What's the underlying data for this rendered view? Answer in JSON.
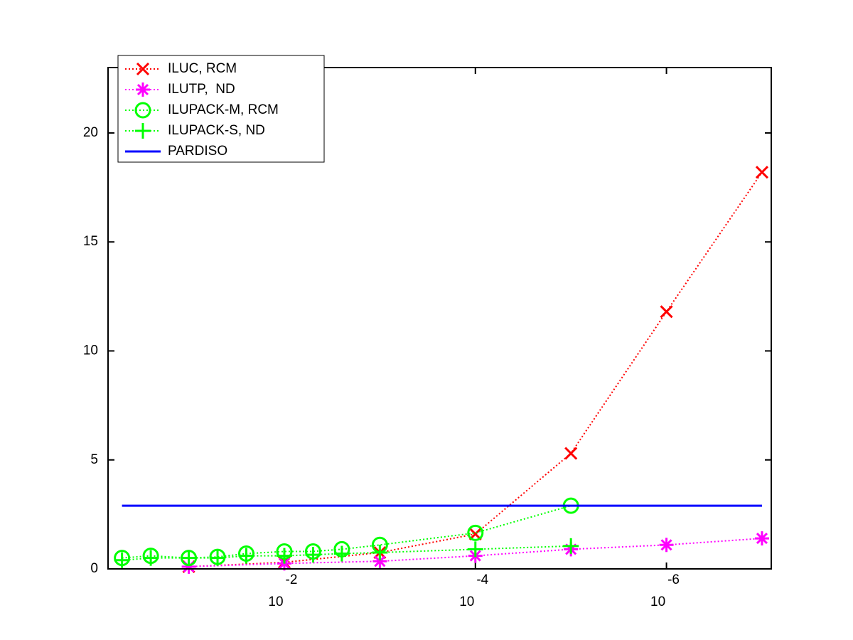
{
  "chart_data": {
    "type": "line",
    "xscale": "log",
    "xlim": [
      0.7,
      8e-08
    ],
    "ylim": [
      0,
      23
    ],
    "xticks": [
      {
        "value": 0.01,
        "label": "10",
        "exponent": "-2"
      },
      {
        "value": 0.0001,
        "label": "10",
        "exponent": "-4"
      },
      {
        "value": 1e-06,
        "label": "10",
        "exponent": "-6"
      }
    ],
    "yticks": [
      0,
      5,
      10,
      15,
      20
    ],
    "legend": "upper left",
    "series": [
      {
        "name": "ILUC, RCM",
        "color": "#ff0000",
        "marker": "x",
        "linestyle": "dotted",
        "x": [
          0.1,
          0.01,
          0.001,
          0.0001,
          1e-05,
          1e-06,
          1e-07
        ],
        "values": [
          0.1,
          0.3,
          0.75,
          1.6,
          5.3,
          11.8,
          18.2
        ]
      },
      {
        "name": "ILUTP,  ND",
        "color": "#ff00ff",
        "marker": "asterisk",
        "linestyle": "dotted",
        "x": [
          0.1,
          0.01,
          0.001,
          0.0001,
          1e-05,
          1e-06,
          1e-07
        ],
        "values": [
          0.1,
          0.25,
          0.35,
          0.6,
          0.9,
          1.1,
          1.4
        ]
      },
      {
        "name": "ILUPACK-M, RCM",
        "color": "#00ff00",
        "marker": "circle",
        "linestyle": "dotted",
        "x": [
          0.5,
          0.25,
          0.1,
          0.05,
          0.025,
          0.01,
          0.005,
          0.0025,
          0.001,
          0.0001,
          1e-05
        ],
        "values": [
          0.5,
          0.6,
          0.5,
          0.55,
          0.7,
          0.8,
          0.8,
          0.9,
          1.1,
          1.65,
          2.9
        ]
      },
      {
        "name": "ILUPACK-S, ND",
        "color": "#00ff00",
        "marker": "plus",
        "linestyle": "dotted",
        "x": [
          0.5,
          0.25,
          0.1,
          0.05,
          0.025,
          0.01,
          0.005,
          0.0025,
          0.001,
          0.0001,
          1e-05
        ],
        "values": [
          0.4,
          0.5,
          0.5,
          0.5,
          0.6,
          0.6,
          0.65,
          0.7,
          0.75,
          0.9,
          1.05
        ]
      },
      {
        "name": "PARDISO",
        "color": "#0000ff",
        "marker": "none",
        "linestyle": "solid",
        "x": [
          0.5,
          1e-07
        ],
        "values": [
          2.9,
          2.9
        ]
      }
    ]
  }
}
